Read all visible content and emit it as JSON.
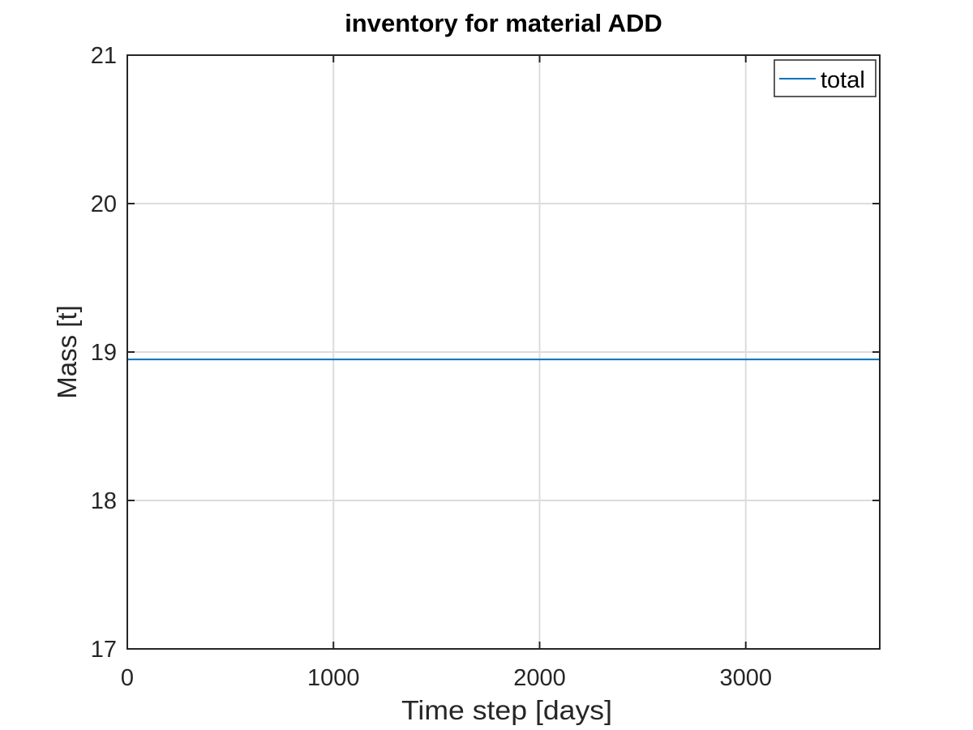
{
  "chart_data": {
    "type": "line",
    "title": "inventory for material ADD",
    "xlabel": "Time step [days]",
    "ylabel": "Mass [t]",
    "xlim": [
      0,
      3650
    ],
    "ylim": [
      17,
      21
    ],
    "x_ticks": [
      0,
      1000,
      2000,
      3000
    ],
    "y_ticks": [
      17,
      18,
      19,
      20,
      21
    ],
    "x_tick_labels": [
      "0",
      "1000",
      "2000",
      "3000"
    ],
    "y_tick_labels": [
      "17",
      "18",
      "19",
      "20",
      "21"
    ],
    "grid": true,
    "legend": {
      "position": "top-right",
      "entries": [
        "total"
      ]
    },
    "series": [
      {
        "name": "total",
        "color": "#0072BD",
        "x": [
          0,
          3650
        ],
        "y": [
          18.95,
          18.95
        ]
      }
    ]
  }
}
